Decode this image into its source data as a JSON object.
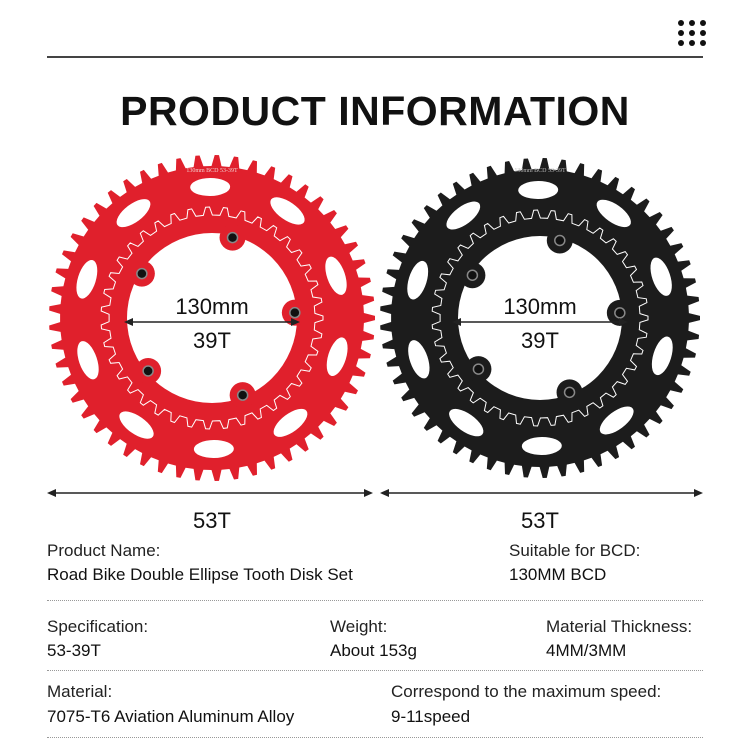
{
  "header": {
    "title": "PRODUCT INFORMATION",
    "menu_icon": "grid-dots-icon"
  },
  "chainrings": [
    {
      "color": "#e0202c",
      "outer_teeth": 53,
      "inner_teeth": 39,
      "engraving": "130mm BCD 53-39T"
    },
    {
      "color": "#1c1c1c",
      "outer_teeth": 53,
      "inner_teeth": 39,
      "engraving": "130mm BCD 53-39T"
    }
  ],
  "dimensions": {
    "bcd": "130mm",
    "inner": "39T",
    "outer": "53T"
  },
  "specs": [
    [
      {
        "label": "Product Name:",
        "value": "Road Bike Double Ellipse Tooth Disk Set"
      },
      {
        "label": "Suitable for BCD:",
        "value": "130MM BCD"
      }
    ],
    [
      {
        "label": "Specification:",
        "value": "53-39T"
      },
      {
        "label": "Weight:",
        "value": "About 153g"
      },
      {
        "label": "Material Thickness:",
        "value": "4MM/3MM"
      }
    ],
    [
      {
        "label": "Material:",
        "value": "7075-T6 Aviation Aluminum Alloy"
      },
      {
        "label": "Correspond to the maximum speed:",
        "value": "9-11speed"
      }
    ]
  ]
}
